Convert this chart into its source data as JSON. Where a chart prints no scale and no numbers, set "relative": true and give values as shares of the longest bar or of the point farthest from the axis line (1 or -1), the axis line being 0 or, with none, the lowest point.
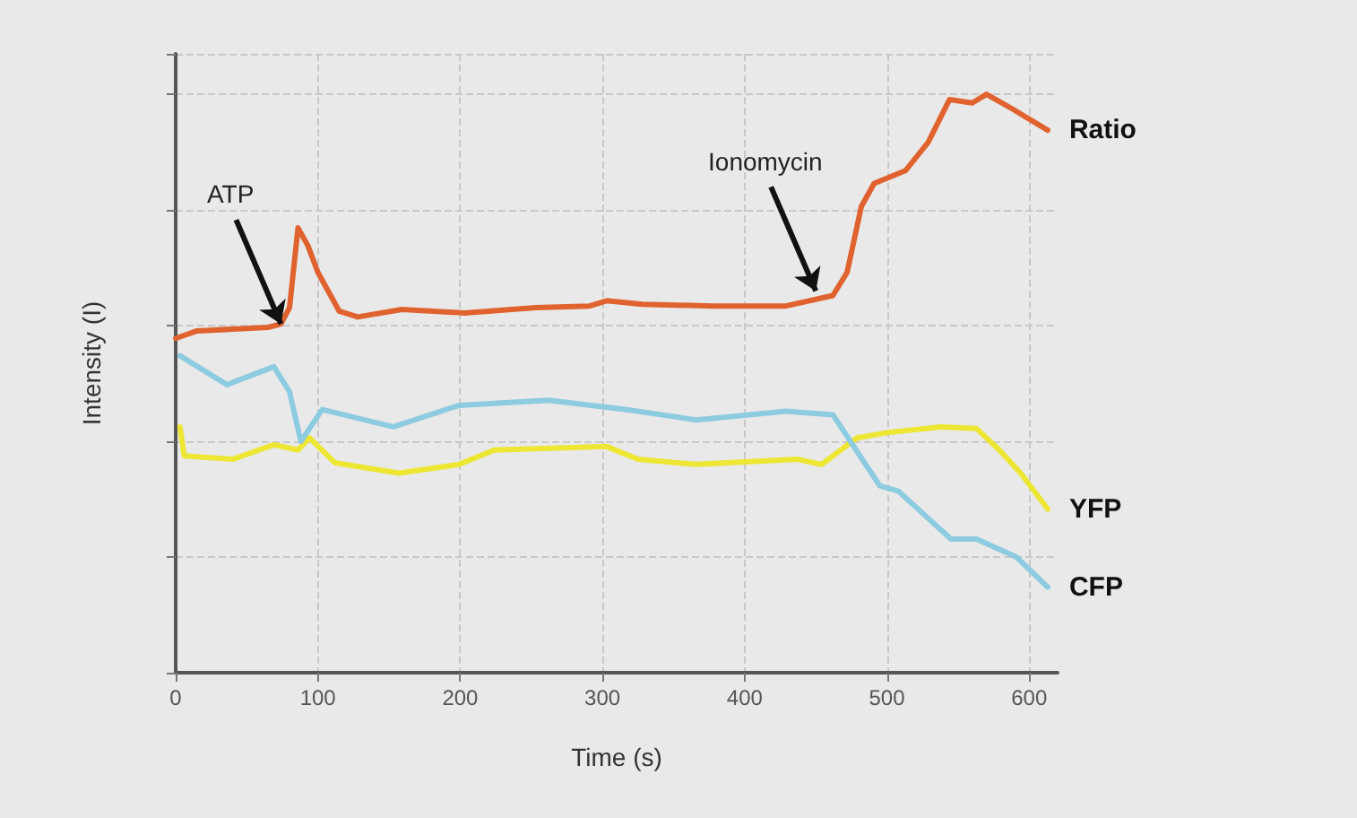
{
  "chart_data": {
    "type": "line",
    "xlabel": "Time (s)",
    "ylabel": "Intensity (I)",
    "relative": true,
    "xlim": [
      0,
      620
    ],
    "xticks": [
      0,
      100,
      200,
      300,
      400,
      500,
      600
    ],
    "grid": true,
    "legend": false,
    "marker": "none",
    "line_style": "solid",
    "annotations": [
      {
        "text": "ATP",
        "x": 74,
        "y": 0.603
      },
      {
        "text": "Ionomycin",
        "x": 450,
        "y": 0.66
      }
    ],
    "series": [
      {
        "name": "Ratio",
        "color": "#e0622e",
        "x": [
          0,
          15,
          40,
          65,
          74,
          80,
          86,
          93,
          100,
          115,
          128,
          159,
          203,
          253,
          291,
          303,
          328,
          378,
          429,
          462,
          472,
          482,
          491,
          513,
          529,
          544,
          560,
          570,
          588,
          613
        ],
        "values": [
          0.578,
          0.591,
          0.594,
          0.597,
          0.603,
          0.631,
          0.769,
          0.738,
          0.692,
          0.625,
          0.615,
          0.628,
          0.622,
          0.631,
          0.634,
          0.643,
          0.637,
          0.634,
          0.634,
          0.652,
          0.692,
          0.806,
          0.846,
          0.868,
          0.917,
          0.991,
          0.985,
          1,
          0.975,
          0.938
        ]
      },
      {
        "name": "YFP",
        "color": "#ede633",
        "x": [
          3,
          6,
          40,
          69,
          86,
          94,
          112,
          157,
          199,
          224,
          303,
          325,
          366,
          437,
          454,
          479,
          500,
          538,
          563,
          579,
          594,
          613
        ],
        "values": [
          0.425,
          0.375,
          0.369,
          0.394,
          0.385,
          0.406,
          0.363,
          0.345,
          0.36,
          0.385,
          0.391,
          0.369,
          0.36,
          0.369,
          0.36,
          0.406,
          0.415,
          0.425,
          0.422,
          0.385,
          0.345,
          0.283
        ]
      },
      {
        "name": "CFP",
        "color": "#8dcbe0",
        "x": [
          3,
          36,
          69,
          80,
          88,
          103,
          153,
          199,
          262,
          316,
          366,
          429,
          462,
          495,
          508,
          545,
          563,
          591,
          613
        ],
        "values": [
          0.548,
          0.498,
          0.529,
          0.486,
          0.4,
          0.455,
          0.425,
          0.462,
          0.471,
          0.455,
          0.437,
          0.452,
          0.446,
          0.323,
          0.314,
          0.231,
          0.231,
          0.2,
          0.148
        ]
      }
    ]
  }
}
